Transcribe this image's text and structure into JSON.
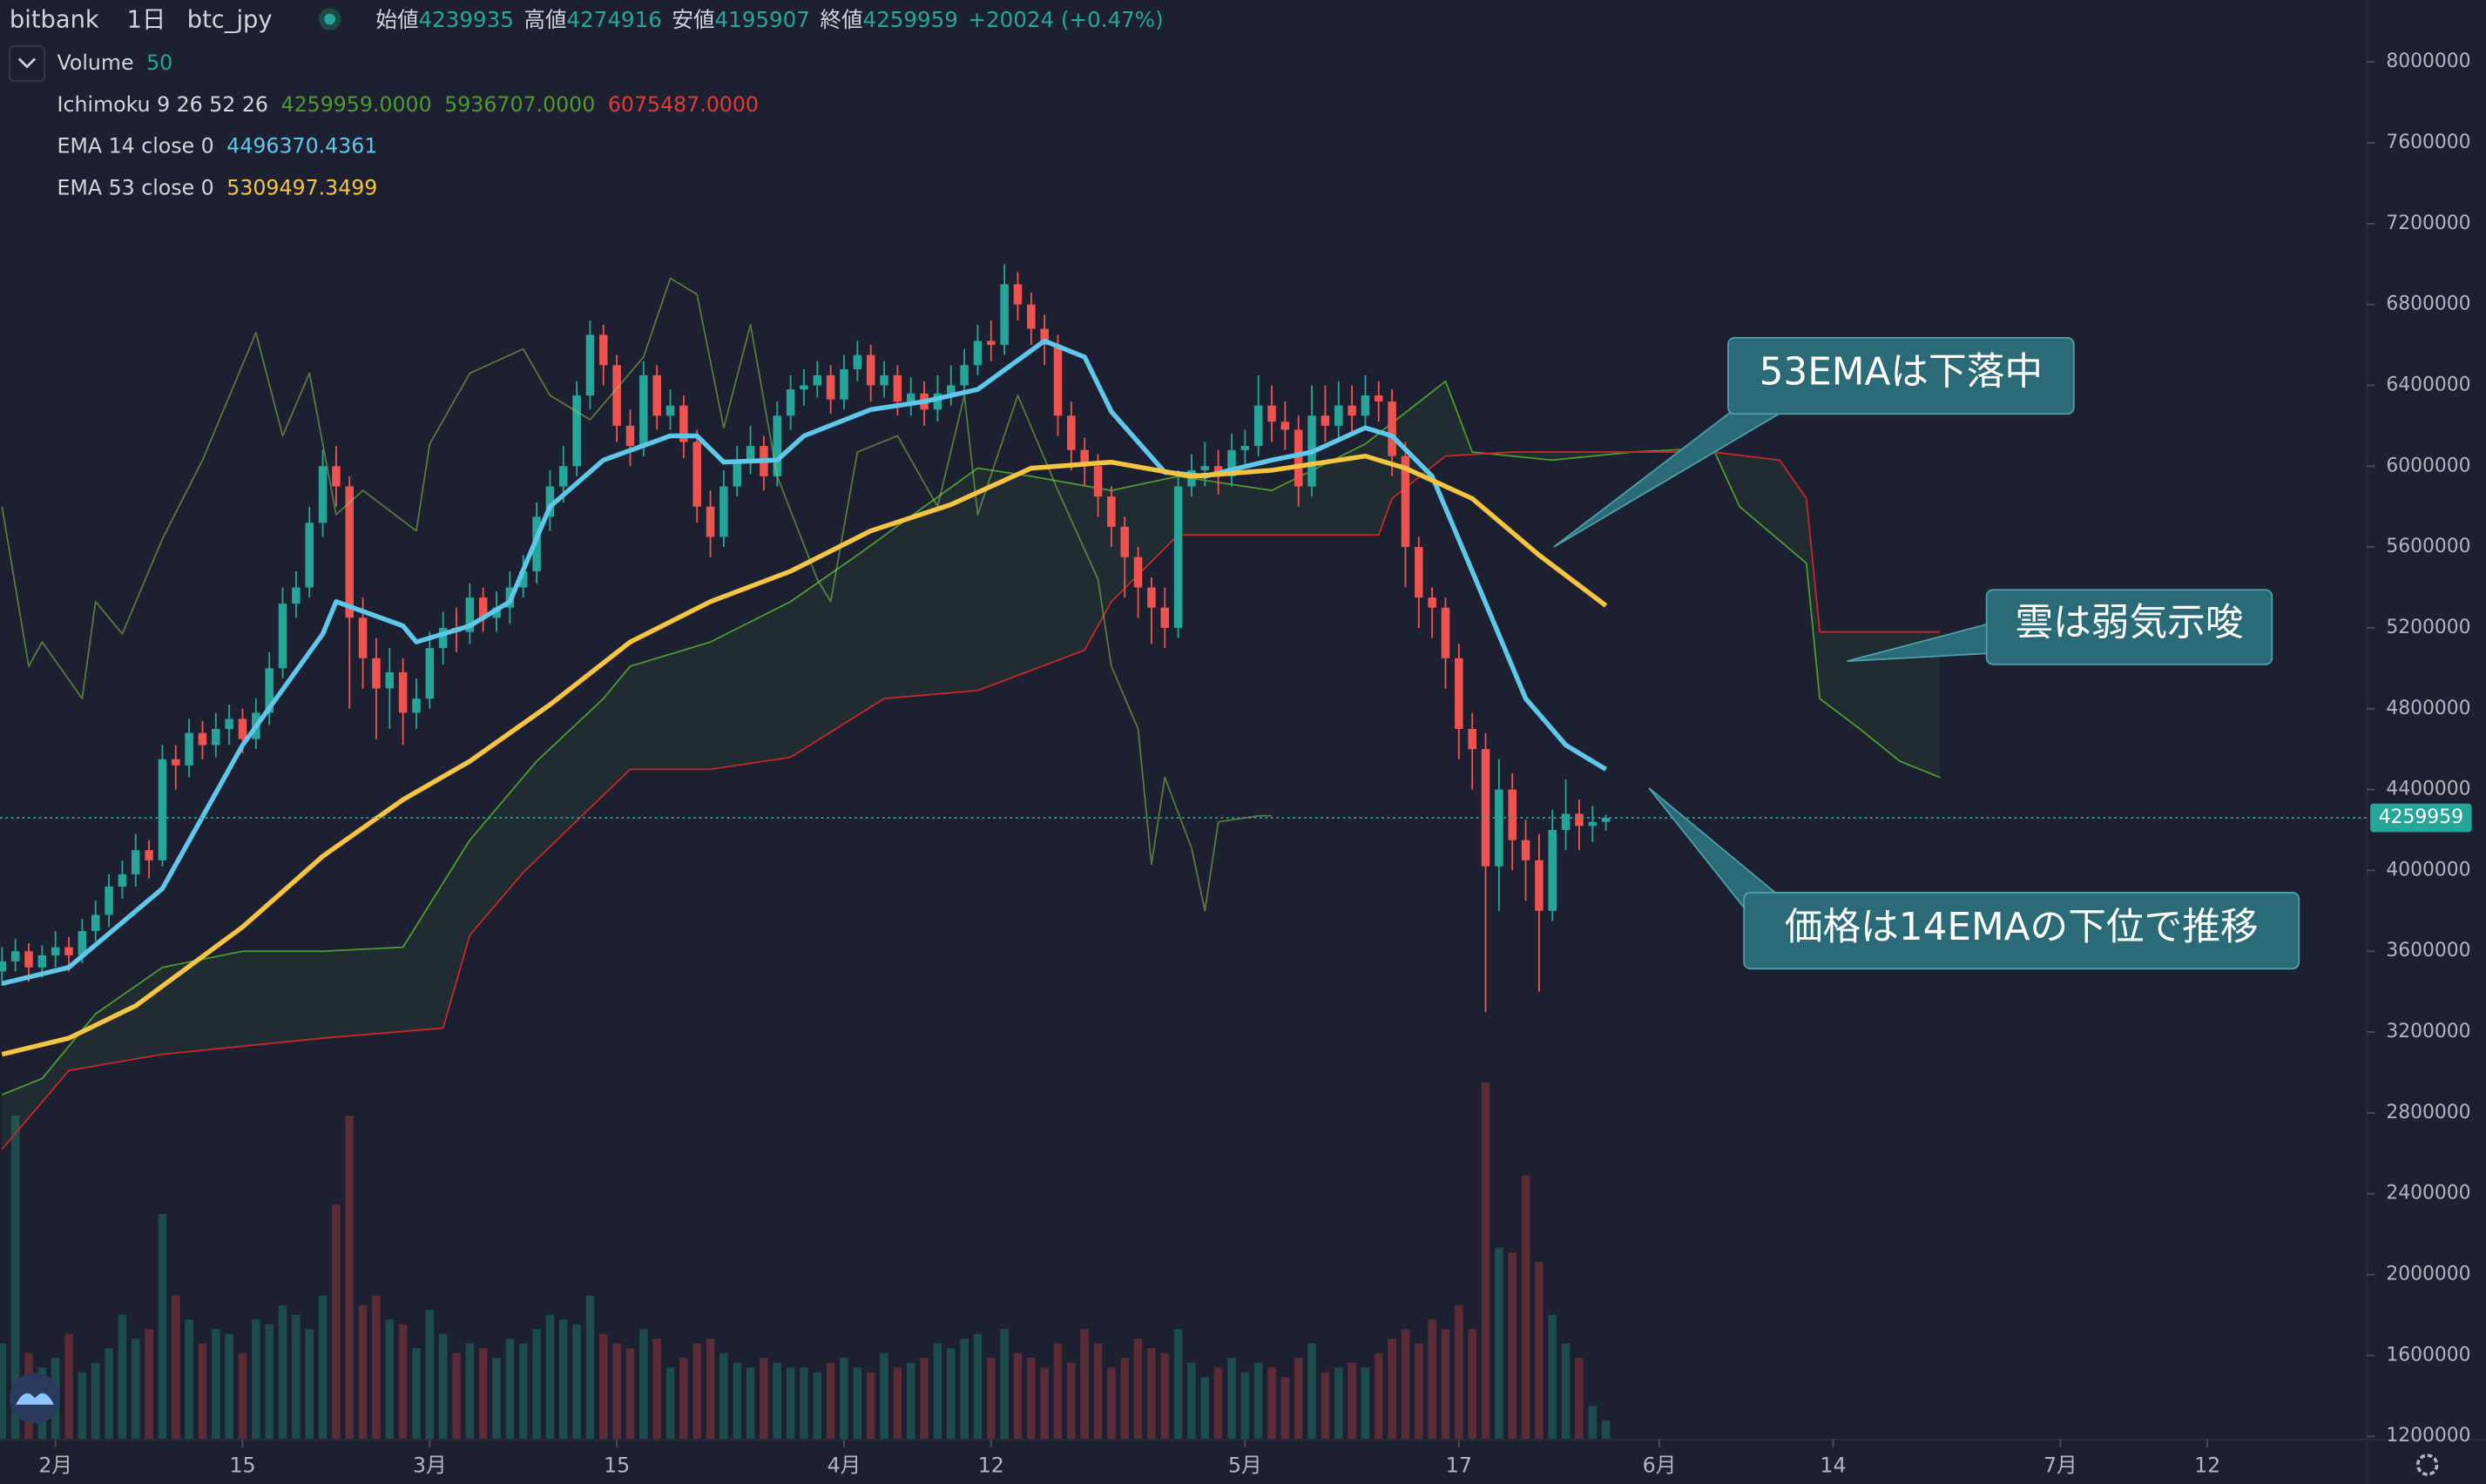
{
  "header": {
    "exchange": "bitbank",
    "interval": "1日",
    "symbol": "btc_jpy",
    "ohlc": [
      {
        "label": "始値",
        "value": "4239935"
      },
      {
        "label": "高値",
        "value": "4274916"
      },
      {
        "label": "安値",
        "value": "4195907"
      },
      {
        "label": "終値",
        "value": "4259959"
      }
    ],
    "change": "+20024 (+0.47%)"
  },
  "indicators": [
    {
      "name": "Volume",
      "values": [
        "50"
      ],
      "colors": [
        "#26a69a"
      ]
    },
    {
      "name": "Ichimoku 9 26 52 26",
      "values": [
        "4259959.0000",
        "5936707.0000",
        "6075487.0000"
      ],
      "colors": [
        "#4f9a2e",
        "#4f9a2e",
        "#e53935"
      ]
    },
    {
      "name": "EMA 14 close 0",
      "values": [
        "4496370.4361"
      ],
      "colors": [
        "#5fc8ea"
      ]
    },
    {
      "name": "EMA 53 close 0",
      "values": [
        "5309497.3499"
      ],
      "colors": [
        "#f5c542"
      ]
    }
  ],
  "chart_data": {
    "type": "candlestick",
    "x": [
      -4,
      -3,
      -2,
      -1,
      0,
      1,
      2,
      3,
      4,
      5,
      6,
      7,
      8,
      9,
      10,
      11,
      12,
      13,
      14,
      15,
      16,
      17,
      18,
      19,
      20,
      21,
      22,
      23,
      24,
      25,
      26,
      27,
      28,
      29,
      30,
      31,
      32,
      33,
      34,
      35,
      36,
      37,
      38,
      39,
      40,
      41,
      42,
      43,
      44,
      45,
      46,
      47,
      48,
      49,
      50,
      51,
      52,
      53,
      54,
      55,
      56,
      57,
      58,
      59,
      60,
      61,
      62,
      63,
      64,
      65,
      66,
      67,
      68,
      69,
      70,
      71,
      72,
      73,
      74,
      75,
      76,
      77,
      78,
      79,
      80,
      81,
      82,
      83,
      84,
      85,
      86,
      87,
      88,
      89,
      90,
      91,
      92,
      93,
      94,
      95,
      96,
      97,
      98,
      99,
      100,
      101,
      102,
      103,
      104,
      105,
      106,
      107,
      108,
      109,
      110,
      111,
      112,
      113,
      114,
      115,
      116
    ],
    "open": [
      3500000,
      3550000,
      3600000,
      3520000,
      3580000,
      3620000,
      3580000,
      3700000,
      3780000,
      3920000,
      3980000,
      4100000,
      4050000,
      4550000,
      4520000,
      4680000,
      4620000,
      4700000,
      4750000,
      4650000,
      4780000,
      5000000,
      5320000,
      5400000,
      5720000,
      6000000,
      5900000,
      5250000,
      5050000,
      4900000,
      4980000,
      4780000,
      4850000,
      5100000,
      5200000,
      5180000,
      5350000,
      5250000,
      5300000,
      5400000,
      5480000,
      5750000,
      5900000,
      6000000,
      6350000,
      6650000,
      6500000,
      6200000,
      6100000,
      6450000,
      6250000,
      6300000,
      6120000,
      5800000,
      5650000,
      5900000,
      6020000,
      6100000,
      5950000,
      6250000,
      6380000,
      6400000,
      6450000,
      6330000,
      6480000,
      6550000,
      6400000,
      6450000,
      6320000,
      6360000,
      6280000,
      6360000,
      6400000,
      6500000,
      6620000,
      6600000,
      6900000,
      6800000,
      6680000,
      6600000,
      6250000,
      6080000,
      6000000,
      5850000,
      5700000,
      5550000,
      5400000,
      5300000,
      5200000,
      5900000,
      5980000,
      6000000,
      5950000,
      6080000,
      6100000,
      6300000,
      6220000,
      6180000,
      5900000,
      6250000,
      6200000,
      6300000,
      6250000,
      6350000,
      6320000,
      6050000,
      5600000,
      5350000,
      5300000,
      5050000,
      4700000,
      4600000,
      4020000,
      4400000,
      4150000,
      4050000,
      3800000,
      4200000,
      4280000,
      4220000,
      4239935
    ],
    "high": [
      3620000,
      3660000,
      3640000,
      3630000,
      3700000,
      3670000,
      3760000,
      3850000,
      3980000,
      4050000,
      4180000,
      4150000,
      4620000,
      4620000,
      4750000,
      4740000,
      4780000,
      4820000,
      4800000,
      4850000,
      5080000,
      5400000,
      5480000,
      5800000,
      6080000,
      6100000,
      5950000,
      5350000,
      5150000,
      5100000,
      5050000,
      4950000,
      5180000,
      5280000,
      5300000,
      5420000,
      5400000,
      5380000,
      5480000,
      5560000,
      5820000,
      5980000,
      6100000,
      6420000,
      6720000,
      6700000,
      6550000,
      6280000,
      6520000,
      6500000,
      6380000,
      6350000,
      6180000,
      5880000,
      5980000,
      6100000,
      6200000,
      6150000,
      6320000,
      6450000,
      6480000,
      6520000,
      6500000,
      6550000,
      6620000,
      6600000,
      6520000,
      6500000,
      6440000,
      6420000,
      6450000,
      6500000,
      6580000,
      6700000,
      6720000,
      7000000,
      6960000,
      6860000,
      6750000,
      6650000,
      6320000,
      6140000,
      6060000,
      5900000,
      5750000,
      5600000,
      5450000,
      5400000,
      5980000,
      6060000,
      6120000,
      6080000,
      6160000,
      6180000,
      6450000,
      6400000,
      6320000,
      6250000,
      6400000,
      6400000,
      6420000,
      6400000,
      6450000,
      6420000,
      6380000,
      6120000,
      5650000,
      5400000,
      5350000,
      5120000,
      4780000,
      4680000,
      4550000,
      4480000,
      4250000,
      4180000,
      4300000,
      4450000,
      4350000,
      4320000,
      4274916
    ],
    "low": [
      3430000,
      3500000,
      3450000,
      3470000,
      3520000,
      3500000,
      3540000,
      3650000,
      3720000,
      3860000,
      3920000,
      3960000,
      4020000,
      4400000,
      4460000,
      4550000,
      4560000,
      4620000,
      4580000,
      4600000,
      4720000,
      4950000,
      5250000,
      5350000,
      5650000,
      5800000,
      4800000,
      4900000,
      4650000,
      4700000,
      4620000,
      4700000,
      4800000,
      5020000,
      5080000,
      5120000,
      5180000,
      5180000,
      5220000,
      5350000,
      5420000,
      5680000,
      5820000,
      5950000,
      6280000,
      6400000,
      6120000,
      6000000,
      6050000,
      6180000,
      6180000,
      6040000,
      5720000,
      5550000,
      5600000,
      5850000,
      5960000,
      5880000,
      5900000,
      6180000,
      6300000,
      6340000,
      6260000,
      6280000,
      6420000,
      6320000,
      6340000,
      6250000,
      6250000,
      6200000,
      6220000,
      6300000,
      6350000,
      6450000,
      6520000,
      6550000,
      6720000,
      6600000,
      6500000,
      6150000,
      5980000,
      5900000,
      5750000,
      5600000,
      5350000,
      5250000,
      5120000,
      5100000,
      5150000,
      5850000,
      5900000,
      5860000,
      5900000,
      6000000,
      6050000,
      6120000,
      6080000,
      5800000,
      5850000,
      6120000,
      6140000,
      6150000,
      6180000,
      6220000,
      5950000,
      5400000,
      5200000,
      5150000,
      4900000,
      4550000,
      4400000,
      3300000,
      3800000,
      4000000,
      3850000,
      3400000,
      3750000,
      4100000,
      4100000,
      4140000,
      4195907
    ],
    "close": [
      3550000,
      3600000,
      3520000,
      3580000,
      3620000,
      3580000,
      3700000,
      3780000,
      3920000,
      3980000,
      4100000,
      4050000,
      4550000,
      4520000,
      4680000,
      4620000,
      4700000,
      4750000,
      4650000,
      4780000,
      5000000,
      5320000,
      5400000,
      5720000,
      6000000,
      5900000,
      5250000,
      5050000,
      4900000,
      4980000,
      4780000,
      4850000,
      5100000,
      5200000,
      5180000,
      5350000,
      5250000,
      5300000,
      5400000,
      5480000,
      5750000,
      5900000,
      6000000,
      6350000,
      6650000,
      6500000,
      6200000,
      6100000,
      6450000,
      6250000,
      6300000,
      6120000,
      5800000,
      5650000,
      5900000,
      6020000,
      6100000,
      5950000,
      6250000,
      6380000,
      6400000,
      6450000,
      6330000,
      6480000,
      6550000,
      6400000,
      6450000,
      6320000,
      6360000,
      6280000,
      6360000,
      6400000,
      6500000,
      6620000,
      6600000,
      6900000,
      6800000,
      6680000,
      6600000,
      6250000,
      6080000,
      6000000,
      5850000,
      5700000,
      5550000,
      5400000,
      5300000,
      5200000,
      5900000,
      5980000,
      6000000,
      5950000,
      6080000,
      6100000,
      6300000,
      6220000,
      6180000,
      5900000,
      6250000,
      6200000,
      6300000,
      6250000,
      6350000,
      6320000,
      6050000,
      5600000,
      5350000,
      5300000,
      5050000,
      4700000,
      4600000,
      4020000,
      4400000,
      4150000,
      4050000,
      3800000,
      4200000,
      4280000,
      4220000,
      4240000,
      4259959
    ],
    "up_color": "#26a69a",
    "down_color": "#ef5350",
    "volume": [
      200,
      675,
      180,
      150,
      170,
      220,
      140,
      160,
      190,
      260,
      210,
      230,
      470,
      300,
      250,
      200,
      230,
      220,
      180,
      250,
      240,
      280,
      260,
      230,
      300,
      490,
      675,
      280,
      300,
      250,
      240,
      190,
      270,
      220,
      180,
      200,
      190,
      170,
      210,
      200,
      230,
      260,
      250,
      240,
      300,
      220,
      200,
      190,
      230,
      210,
      150,
      170,
      200,
      210,
      180,
      160,
      150,
      170,
      160,
      150,
      150,
      140,
      160,
      170,
      150,
      140,
      180,
      150,
      160,
      170,
      200,
      190,
      210,
      220,
      170,
      230,
      180,
      170,
      150,
      200,
      160,
      230,
      200,
      150,
      170,
      210,
      190,
      180,
      230,
      160,
      130,
      150,
      170,
      140,
      160,
      150,
      130,
      170,
      200,
      140,
      150,
      160,
      150,
      180,
      210,
      230,
      200,
      250,
      230,
      280,
      230,
      744,
      400,
      390,
      550,
      370,
      260,
      200,
      170,
      70,
      40
    ],
    "volume_up_color": "#1d4c4c",
    "volume_down_color": "#5b2c35",
    "y2lim": [
      0,
      3000
    ],
    "lines": [
      {
        "color": "#8fd14f",
        "width": 1,
        "opacity": 0.5,
        "x": [
          -4,
          -2,
          -1,
          2,
          3,
          5,
          8,
          11,
          15,
          17,
          19,
          20,
          21,
          23,
          27,
          28,
          31,
          35,
          37,
          40,
          44,
          46,
          48,
          50,
          52,
          54,
          57,
          58,
          60,
          63,
          66,
          68,
          69,
          72,
          75,
          78,
          79,
          81,
          82,
          83,
          85,
          86,
          87,
          90,
          91
        ],
        "values": [
          5800000,
          5010000,
          5130000,
          4850000,
          5330000,
          5170000,
          5640000,
          6030000,
          6660000,
          6150000,
          6460000,
          6110000,
          5760000,
          5880000,
          5680000,
          6110000,
          6460000,
          6580000,
          6350000,
          6230000,
          6540000,
          6930000,
          6850000,
          6190000,
          6700000,
          5950000,
          5440000,
          5330000,
          6070000,
          6150000,
          5800000,
          6350000,
          5760000,
          6350000,
          5880000,
          5440000,
          5010000,
          4700000,
          4030000,
          4460000,
          4110000,
          3800000,
          4240000,
          4270000,
          4270000
        ]
      },
      {
        "color": "#5fc8ea",
        "width": 3,
        "opacity": 1,
        "x": [
          -4,
          1,
          8,
          14,
          20,
          21,
          26,
          27,
          31,
          34,
          37,
          41,
          46,
          48,
          50,
          54,
          56,
          61,
          65,
          69,
          74,
          77,
          79,
          83,
          86,
          91,
          94,
          98,
          100,
          103,
          106,
          110,
          113,
          116
        ],
        "values": [
          3440000,
          3520000,
          3910000,
          4620000,
          5170000,
          5330000,
          5210000,
          5130000,
          5210000,
          5330000,
          5800000,
          6030000,
          6150000,
          6150000,
          6020000,
          6030000,
          6150000,
          6280000,
          6320000,
          6380000,
          6620000,
          6540000,
          6270000,
          5970000,
          5950000,
          6030000,
          6070000,
          6190000,
          6150000,
          5950000,
          5480000,
          4850000,
          4620000,
          4500000
        ]
      },
      {
        "color": "#f5c542",
        "width": 3,
        "opacity": 1,
        "x": [
          -4,
          1,
          6,
          14,
          20,
          26,
          31,
          37,
          43,
          49,
          55,
          61,
          67,
          73,
          79,
          85,
          91,
          98,
          101,
          106,
          111,
          116
        ],
        "values": [
          3090000,
          3170000,
          3330000,
          3720000,
          4070000,
          4350000,
          4540000,
          4820000,
          5130000,
          5330000,
          5480000,
          5680000,
          5810000,
          5990000,
          6020000,
          5950000,
          5980000,
          6050000,
          5990000,
          5840000,
          5560000,
          5310000
        ]
      }
    ],
    "cloud": {
      "fill": "rgba(67,160,71,0.10)",
      "span_a": {
        "color": "#4f9a2e",
        "x": [
          -4,
          -1,
          3,
          8,
          14,
          20,
          26,
          31,
          36,
          41,
          43,
          49,
          55,
          60,
          65,
          69,
          73,
          79,
          84,
          91,
          98,
          104,
          106,
          112,
          118,
          124,
          126,
          131,
          132,
          135,
          138,
          141
        ],
        "values": [
          2890000,
          2970000,
          3290000,
          3520000,
          3600000,
          3600000,
          3620000,
          4150000,
          4540000,
          4850000,
          5010000,
          5130000,
          5330000,
          5560000,
          5800000,
          5990000,
          5950000,
          5880000,
          5950000,
          5880000,
          6110000,
          6420000,
          6070000,
          6030000,
          6070000,
          6090000,
          5800000,
          5520000,
          4850000,
          4700000,
          4540000,
          4460000
        ]
      },
      "span_b": {
        "color": "#c62828",
        "x": [
          -4,
          1,
          8,
          20,
          29,
          31,
          35,
          43,
          49,
          55,
          62,
          69,
          77,
          79,
          84,
          91,
          99,
          100,
          104,
          109,
          114,
          120,
          124,
          129,
          131,
          132,
          141
        ],
        "values": [
          2620000,
          3010000,
          3090000,
          3170000,
          3220000,
          3680000,
          3990000,
          4500000,
          4500000,
          4560000,
          4850000,
          4890000,
          5090000,
          5330000,
          5660000,
          5660000,
          5660000,
          5840000,
          6050000,
          6070000,
          6070000,
          6070000,
          6070000,
          6030000,
          5840000,
          5180000,
          5180000
        ]
      }
    },
    "last_price": 4259959,
    "last_price_color": "#26a69a",
    "xlim": [
      -4.15,
      172.95
    ],
    "xticks": [
      {
        "value": 0,
        "label": "2月"
      },
      {
        "value": 14,
        "label": "15"
      },
      {
        "value": 28,
        "label": "3月"
      },
      {
        "value": 42,
        "label": "15"
      },
      {
        "value": 59,
        "label": "4月"
      },
      {
        "value": 70,
        "label": "12"
      },
      {
        "value": 89,
        "label": "5月"
      },
      {
        "value": 105,
        "label": "17"
      },
      {
        "value": 120,
        "label": "6月"
      },
      {
        "value": 133,
        "label": "14"
      },
      {
        "value": 150,
        "label": "7月"
      },
      {
        "value": 161,
        "label": "12"
      }
    ],
    "ylim": [
      1184314,
      8305882
    ],
    "yticks": [
      1200000,
      1600000,
      2000000,
      2400000,
      2800000,
      3200000,
      3600000,
      4000000,
      4400000,
      4800000,
      5200000,
      5600000,
      6000000,
      6400000,
      6800000,
      7200000,
      7600000,
      8000000
    ],
    "grid": false,
    "annotations": [
      "53EMAは下落中",
      "雲は弱気示唆",
      "価格は14EMAの下位で推移"
    ]
  }
}
